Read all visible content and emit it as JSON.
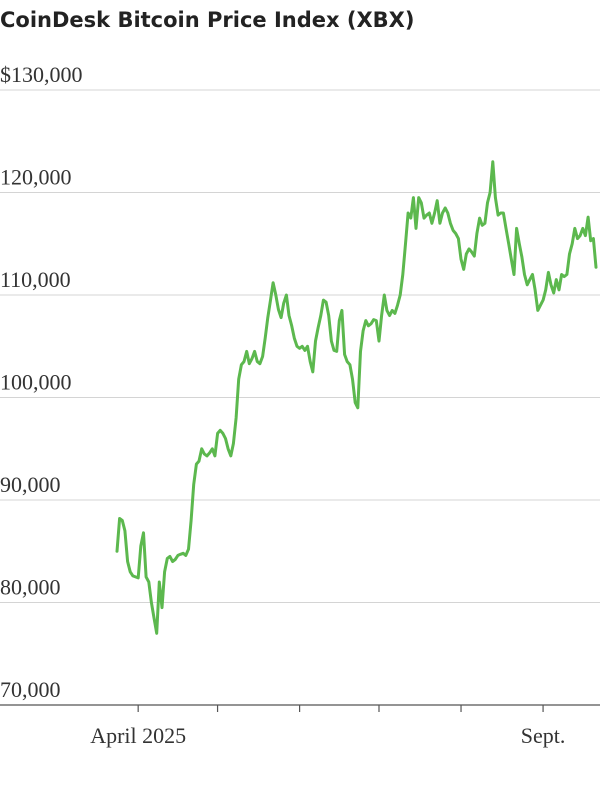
{
  "chart_data": {
    "type": "line",
    "title": "CoinDesk Bitcoin Price Index (XBX)",
    "color": "#5cb84e",
    "categories": [
      null,
      null,
      null,
      null,
      null,
      null,
      null,
      null,
      "April 2025",
      null,
      null,
      null,
      null,
      null,
      null,
      null,
      null,
      null,
      null,
      null,
      null,
      null,
      null,
      null,
      null,
      null,
      null,
      null,
      null,
      null,
      null,
      null,
      null,
      null,
      null,
      null,
      null,
      null,
      null,
      null,
      null,
      null,
      null,
      null,
      null,
      null,
      null,
      null,
      null,
      null,
      null,
      null,
      null,
      null,
      null,
      null,
      null,
      null,
      null,
      null,
      null,
      null,
      null,
      null,
      null,
      null,
      null,
      null,
      null,
      null,
      null,
      null,
      null,
      null,
      null,
      null,
      null,
      null,
      null,
      null,
      null,
      null,
      null,
      null,
      null,
      null,
      null,
      null,
      null,
      null,
      null,
      null,
      null,
      null,
      null,
      null,
      null,
      null,
      null,
      null,
      null,
      null,
      null,
      null,
      null,
      null,
      null,
      null,
      null,
      null,
      null,
      null,
      null,
      null,
      null,
      null,
      null,
      null,
      null,
      null,
      null,
      null,
      null,
      null,
      null,
      null,
      null,
      null,
      null,
      null,
      null,
      null,
      null,
      null,
      null,
      null,
      null,
      null,
      null,
      null,
      null,
      null,
      null,
      null,
      null,
      null,
      null,
      null,
      null,
      null,
      null,
      null,
      null,
      null,
      null,
      null,
      null,
      null,
      null,
      null,
      null,
      "Sept.",
      null,
      null,
      null,
      null,
      null,
      null,
      null,
      null,
      null,
      null,
      null,
      null,
      null,
      null,
      null,
      null,
      null,
      null,
      null,
      null
    ],
    "values": [
      85000,
      88200,
      88000,
      87000,
      84000,
      83000,
      82600,
      82500,
      82400,
      85500,
      86800,
      82500,
      82000,
      80000,
      78500,
      77000,
      82000,
      79500,
      83000,
      84300,
      84500,
      84000,
      84200,
      84600,
      84700,
      84800,
      84600,
      85200,
      88000,
      91500,
      93500,
      93800,
      95000,
      94500,
      94300,
      94600,
      95000,
      94300,
      96500,
      96800,
      96500,
      96000,
      95000,
      94300,
      95500,
      98000,
      101800,
      103200,
      103500,
      104500,
      103300,
      103800,
      104500,
      103500,
      103300,
      104000,
      105800,
      107800,
      109500,
      111200,
      110000,
      108600,
      107800,
      109200,
      110000,
      108000,
      107000,
      105800,
      105000,
      104800,
      105000,
      104600,
      105000,
      103500,
      102500,
      105500,
      106800,
      108000,
      109500,
      109300,
      108000,
      105500,
      104600,
      104500,
      107500,
      108500,
      104200,
      103500,
      103200,
      101800,
      99500,
      99000,
      104500,
      106500,
      107500,
      107000,
      107200,
      107600,
      107500,
      105500,
      108000,
      110000,
      108500,
      108000,
      108500,
      108200,
      109000,
      110000,
      112000,
      115000,
      118000,
      117500,
      119500,
      116500,
      119500,
      119000,
      117500,
      117800,
      118000,
      117000,
      118000,
      119200,
      117000,
      118000,
      118500,
      118000,
      117000,
      116300,
      116000,
      115500,
      113500,
      112500,
      114000,
      114500,
      114200,
      113800,
      116000,
      117500,
      116800,
      117000,
      119000,
      120000,
      123000,
      119500,
      117800,
      118000,
      118000,
      116500,
      115000,
      113500,
      112000,
      116500,
      115000,
      113700,
      112000,
      111000,
      111500,
      112000,
      110500,
      108500,
      109000,
      109500,
      110500,
      112200,
      111000,
      110200,
      111500,
      110500,
      112000,
      111800,
      112000,
      114000,
      115000,
      116500,
      115500,
      115800,
      116500,
      115800,
      117600,
      115300,
      115500,
      112700
    ],
    "xticks": [
      8,
      38,
      69,
      99,
      130,
      161
    ],
    "ylim": [
      70000,
      130000
    ],
    "yticks": [
      {
        "value": 70000,
        "label": "70,000"
      },
      {
        "value": 80000,
        "label": "80,000"
      },
      {
        "value": 90000,
        "label": "90,000"
      },
      {
        "value": 100000,
        "label": "100,000"
      },
      {
        "value": 110000,
        "label": "110,000"
      },
      {
        "value": 120000,
        "label": "120,000"
      },
      {
        "value": 130000,
        "label": "$130,000"
      }
    ],
    "grid": true
  }
}
